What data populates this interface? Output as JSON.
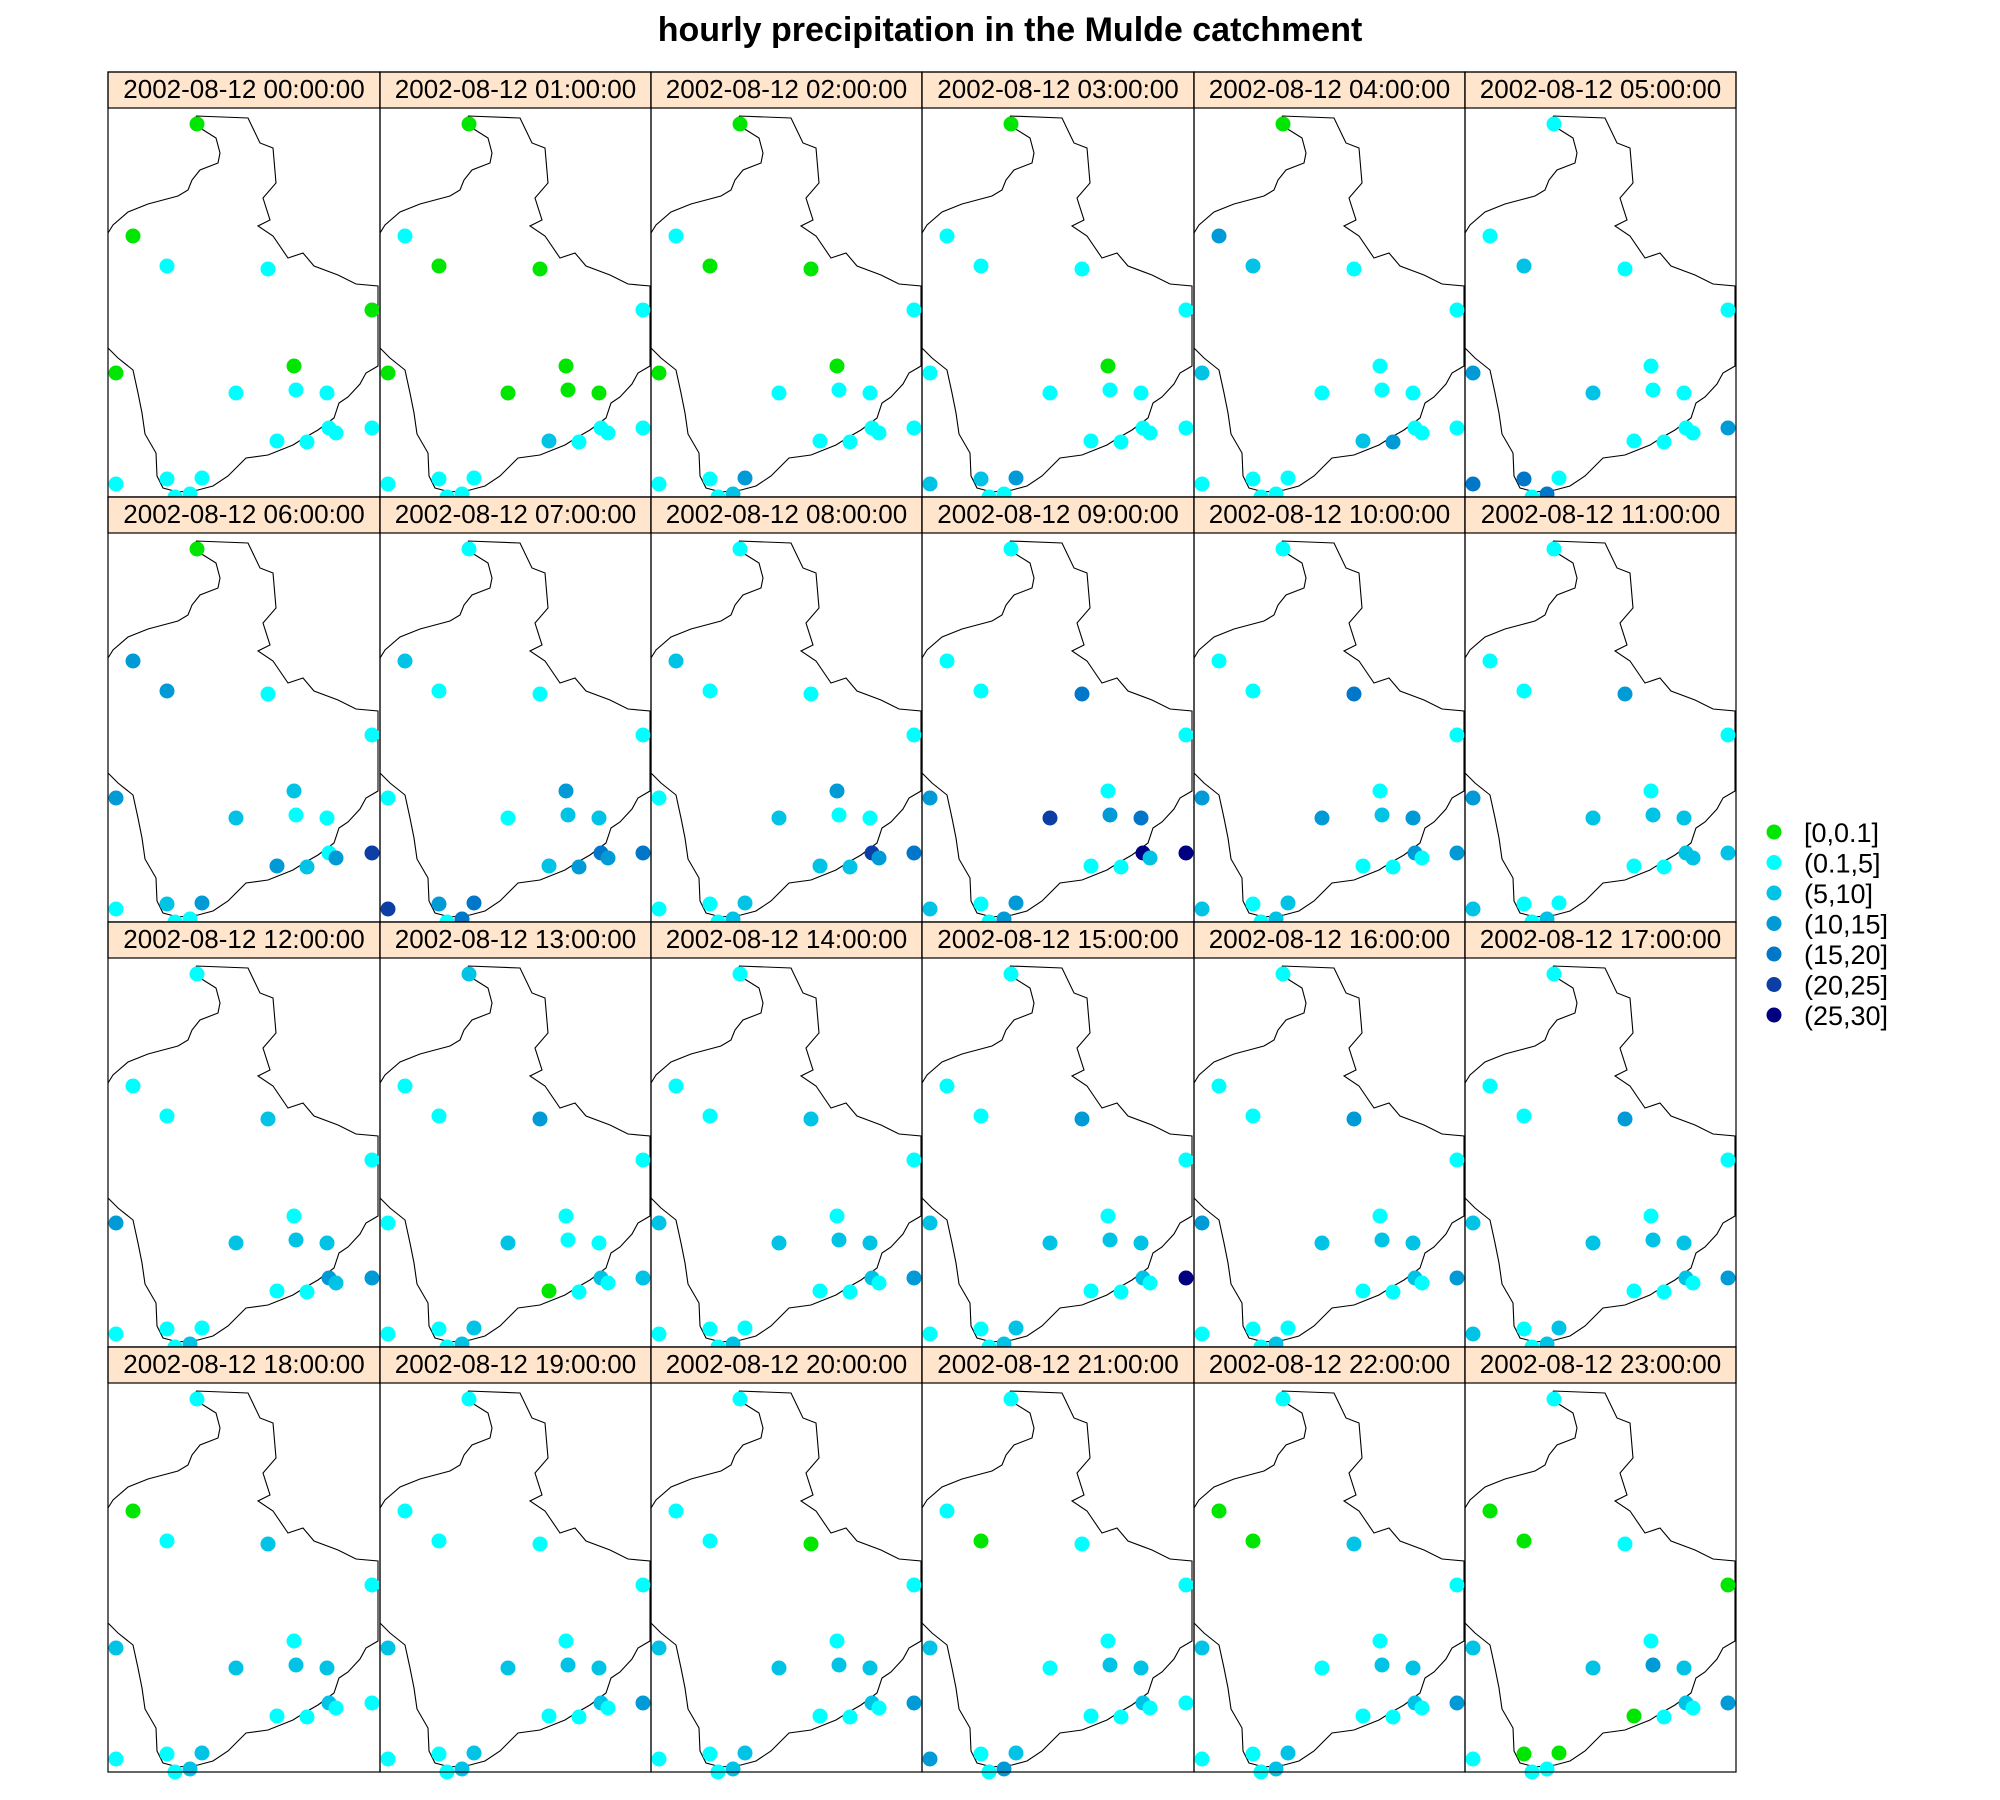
{
  "chart_data": {
    "type": "scatter",
    "title": "hourly precipitation in the Mulde catchment",
    "panel_labels": [
      "2002-08-12 00:00:00",
      "2002-08-12 01:00:00",
      "2002-08-12 02:00:00",
      "2002-08-12 03:00:00",
      "2002-08-12 04:00:00",
      "2002-08-12 05:00:00",
      "2002-08-12 06:00:00",
      "2002-08-12 07:00:00",
      "2002-08-12 08:00:00",
      "2002-08-12 09:00:00",
      "2002-08-12 10:00:00",
      "2002-08-12 11:00:00",
      "2002-08-12 12:00:00",
      "2002-08-12 13:00:00",
      "2002-08-12 14:00:00",
      "2002-08-12 15:00:00",
      "2002-08-12 16:00:00",
      "2002-08-12 17:00:00",
      "2002-08-12 18:00:00",
      "2002-08-12 19:00:00",
      "2002-08-12 20:00:00",
      "2002-08-12 21:00:00",
      "2002-08-12 22:00:00",
      "2002-08-12 23:00:00"
    ],
    "legend": {
      "classes": [
        "[0,0.1]",
        "(0.1,5]",
        "(5,10]",
        "(10,15]",
        "(15,20]",
        "(20,25]",
        "(25,30]"
      ],
      "colors": [
        "#00e600",
        "#00ffff",
        "#00c3e6",
        "#009ad6",
        "#0077c8",
        "#0d3ea6",
        "#000080"
      ],
      "position": "right"
    },
    "precip_class_by_panel": [
      [
        0,
        0,
        1,
        1,
        0,
        0,
        0,
        1,
        1,
        1,
        1,
        1,
        1,
        1,
        1,
        1,
        1,
        1,
        1,
        1
      ],
      [
        0,
        1,
        0,
        0,
        1,
        0,
        0,
        0,
        0,
        0,
        1,
        1,
        2,
        1,
        1,
        1,
        1,
        1,
        1,
        1
      ],
      [
        0,
        1,
        0,
        0,
        1,
        0,
        0,
        1,
        1,
        1,
        1,
        1,
        1,
        1,
        1,
        3,
        1,
        2,
        1,
        1
      ],
      [
        0,
        1,
        1,
        1,
        1,
        0,
        1,
        1,
        1,
        1,
        1,
        1,
        1,
        1,
        1,
        3,
        2,
        1,
        2,
        1
      ],
      [
        0,
        3,
        2,
        1,
        1,
        1,
        2,
        1,
        1,
        1,
        1,
        1,
        2,
        3,
        1,
        1,
        1,
        1,
        1,
        1
      ],
      [
        1,
        1,
        2,
        1,
        1,
        1,
        3,
        2,
        1,
        1,
        1,
        3,
        1,
        1,
        1,
        1,
        4,
        4,
        4,
        1
      ],
      [
        0,
        3,
        3,
        1,
        1,
        2,
        3,
        2,
        1,
        1,
        1,
        5,
        3,
        2,
        3,
        3,
        2,
        1,
        1,
        1
      ],
      [
        1,
        2,
        1,
        1,
        1,
        3,
        1,
        1,
        2,
        2,
        4,
        4,
        2,
        3,
        3,
        4,
        3,
        4,
        5,
        1
      ],
      [
        1,
        2,
        1,
        1,
        1,
        3,
        1,
        2,
        1,
        1,
        5,
        4,
        2,
        2,
        3,
        2,
        1,
        2,
        1,
        1
      ],
      [
        1,
        1,
        1,
        4,
        1,
        1,
        3,
        5,
        3,
        4,
        6,
        6,
        1,
        1,
        2,
        3,
        1,
        3,
        2,
        1
      ],
      [
        1,
        1,
        1,
        4,
        1,
        1,
        3,
        3,
        2,
        3,
        3,
        3,
        1,
        1,
        1,
        2,
        1,
        2,
        2,
        1
      ],
      [
        1,
        1,
        1,
        3,
        1,
        1,
        3,
        2,
        2,
        2,
        2,
        2,
        1,
        1,
        2,
        1,
        1,
        2,
        2,
        1
      ],
      [
        1,
        1,
        1,
        2,
        1,
        1,
        3,
        2,
        2,
        2,
        3,
        3,
        1,
        1,
        2,
        1,
        1,
        2,
        1,
        1
      ],
      [
        2,
        1,
        1,
        3,
        1,
        1,
        1,
        2,
        1,
        1,
        2,
        2,
        0,
        1,
        1,
        2,
        1,
        2,
        1,
        1
      ],
      [
        1,
        1,
        1,
        2,
        1,
        1,
        2,
        2,
        2,
        2,
        2,
        3,
        1,
        1,
        1,
        1,
        1,
        2,
        1,
        1
      ],
      [
        1,
        1,
        1,
        3,
        1,
        1,
        2,
        2,
        2,
        2,
        2,
        6,
        1,
        1,
        1,
        2,
        1,
        2,
        1,
        1
      ],
      [
        1,
        1,
        1,
        3,
        1,
        1,
        3,
        2,
        2,
        2,
        2,
        3,
        1,
        1,
        1,
        1,
        1,
        2,
        1,
        1
      ],
      [
        1,
        1,
        1,
        3,
        1,
        1,
        2,
        2,
        2,
        2,
        2,
        3,
        1,
        1,
        1,
        2,
        1,
        2,
        2,
        1
      ],
      [
        1,
        0,
        1,
        2,
        1,
        1,
        2,
        2,
        2,
        2,
        2,
        1,
        1,
        1,
        1,
        2,
        1,
        2,
        1,
        1
      ],
      [
        1,
        1,
        1,
        1,
        1,
        1,
        2,
        2,
        2,
        2,
        2,
        3,
        1,
        1,
        1,
        2,
        1,
        2,
        1,
        1
      ],
      [
        1,
        1,
        1,
        0,
        1,
        1,
        2,
        2,
        2,
        2,
        2,
        3,
        1,
        1,
        1,
        2,
        1,
        2,
        1,
        1
      ],
      [
        1,
        1,
        0,
        1,
        1,
        1,
        2,
        1,
        2,
        2,
        2,
        1,
        1,
        1,
        1,
        2,
        1,
        3,
        3,
        1
      ],
      [
        1,
        0,
        0,
        2,
        1,
        1,
        2,
        1,
        2,
        2,
        2,
        3,
        1,
        1,
        1,
        2,
        1,
        2,
        1,
        1
      ],
      [
        1,
        0,
        0,
        1,
        0,
        1,
        2,
        2,
        3,
        2,
        2,
        3,
        0,
        1,
        1,
        0,
        0,
        1,
        1,
        1
      ]
    ]
  }
}
